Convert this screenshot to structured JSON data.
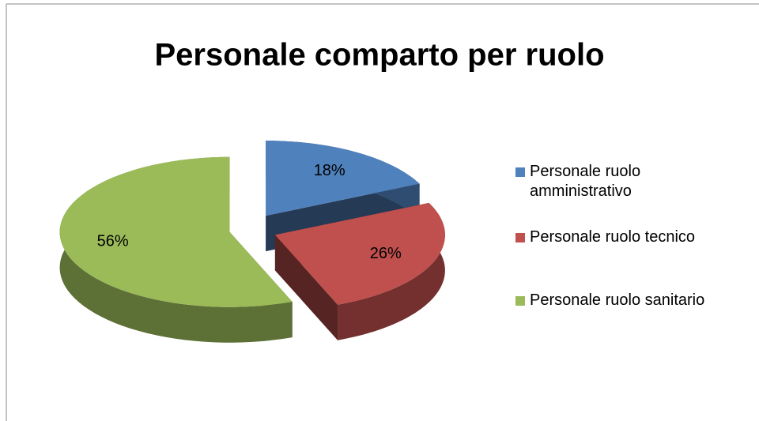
{
  "chart_data": {
    "type": "pie",
    "title": "Personale comparto per ruolo",
    "categories": [
      "Personale ruolo amministrativo",
      "Personale ruolo tecnico",
      "Personale ruolo sanitario"
    ],
    "values": [
      18,
      26,
      56
    ],
    "value_labels": [
      "18%",
      "26%",
      "56%"
    ],
    "colors": [
      "#4f81bd",
      "#c0504d",
      "#9bbb59"
    ],
    "legend": "right"
  }
}
